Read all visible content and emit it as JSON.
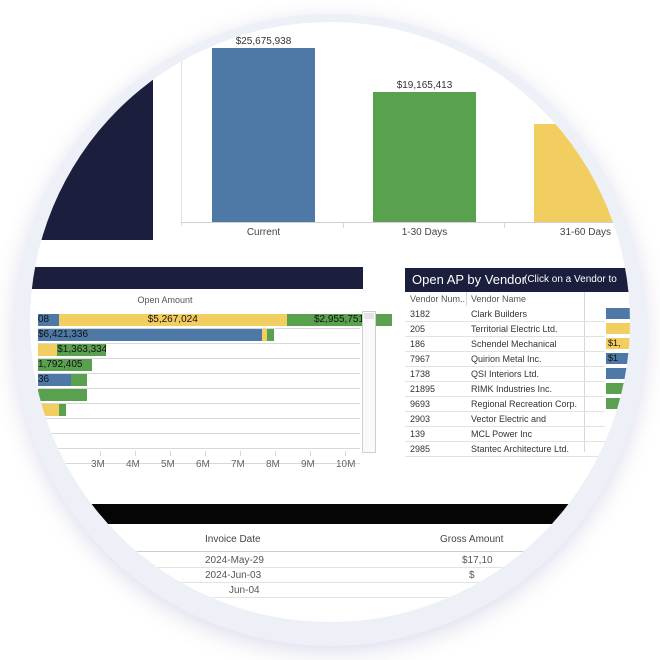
{
  "aging_chart": {
    "bars": [
      {
        "category": "Current",
        "value": 25675938,
        "label": "$25,675,938",
        "color": "#4e79a7"
      },
      {
        "category": "1-30 Days",
        "value": 19165413,
        "label": "$19,165,413",
        "color": "#59a14f"
      },
      {
        "category": "31-60 Days",
        "value": 14500000,
        "label": "",
        "color": "#f2cd60"
      }
    ]
  },
  "open_amount_chart": {
    "axis_title": "Open Amount",
    "ticks": [
      "3M",
      "4M",
      "5M",
      "6M",
      "7M",
      "8M",
      "9M",
      "10M"
    ],
    "rows": [
      {
        "segments": [
          {
            "color": "blue",
            "label": "08",
            "start": 0.0,
            "end": 0.6
          },
          {
            "color": "yellow",
            "label": "$5,267,024",
            "start": 0.6,
            "end": 7.1
          },
          {
            "color": "green",
            "label": "$2,955,751",
            "start": 7.1,
            "end": 10.1
          }
        ]
      },
      {
        "segments": [
          {
            "color": "blue",
            "label": "$6,421,336",
            "start": 0.0,
            "end": 6.4
          },
          {
            "color": "yellow",
            "label": "",
            "start": 6.4,
            "end": 6.55
          },
          {
            "color": "green",
            "label": "",
            "start": 6.55,
            "end": 6.75
          }
        ]
      },
      {
        "segments": [
          {
            "color": "yellow",
            "label": "",
            "start": 0.0,
            "end": 0.55
          },
          {
            "color": "green",
            "label": "$1,363,334",
            "start": 0.55,
            "end": 1.95
          }
        ]
      },
      {
        "segments": [
          {
            "color": "green",
            "label": "1,792,405",
            "start": 0.0,
            "end": 1.55
          }
        ]
      },
      {
        "segments": [
          {
            "color": "blue",
            "label": "36",
            "start": 0.0,
            "end": 0.95
          },
          {
            "color": "green",
            "label": "",
            "start": 0.95,
            "end": 1.4
          }
        ]
      },
      {
        "segments": [
          {
            "color": "green",
            "label": "",
            "start": 0.0,
            "end": 1.4
          }
        ]
      },
      {
        "segments": [
          {
            "color": "yellow",
            "label": "",
            "start": 0.0,
            "end": 0.6
          },
          {
            "color": "green",
            "label": "",
            "start": 0.6,
            "end": 0.8
          }
        ]
      },
      {
        "segments": []
      },
      {
        "segments": []
      },
      {
        "segments": []
      }
    ]
  },
  "vendor_panel": {
    "title": "Open AP by Vendor",
    "subtitle": "(Click on a Vendor to",
    "col_number": "Vendor Num..",
    "col_name": "Vendor Name",
    "rows": [
      {
        "number": "3182",
        "name": "Clark Builders",
        "bar_color": "blue",
        "bar_label": ""
      },
      {
        "number": "205",
        "name": "Territorial Electric Ltd.",
        "bar_color": "yellow",
        "bar_label": ""
      },
      {
        "number": "186",
        "name": "Schendel Mechanical",
        "bar_color": "yellow",
        "bar_label": "$1,"
      },
      {
        "number": "7967",
        "name": "Quirion Metal Inc.",
        "bar_color": "blue",
        "bar_label": "$1"
      },
      {
        "number": "1738",
        "name": "QSI Interiors Ltd.",
        "bar_color": "blue",
        "bar_label": ""
      },
      {
        "number": "21895",
        "name": "RIMK Industries Inc.",
        "bar_color": "green",
        "bar_label": ""
      },
      {
        "number": "9693",
        "name": "Regional Recreation Corp.",
        "bar_color": "green",
        "bar_label": ""
      },
      {
        "number": "2903",
        "name": "Vector Electric and",
        "bar_color": "",
        "bar_label": ""
      },
      {
        "number": "139",
        "name": "MCL Power Inc",
        "bar_color": "",
        "bar_label": ""
      },
      {
        "number": "2985",
        "name": "Stantec Architecture Ltd.",
        "bar_color": "",
        "bar_label": ""
      }
    ]
  },
  "invoice_table": {
    "col_date": "Invoice Date",
    "col_amount": "Gross Amount",
    "rows": [
      {
        "date": "2024-May-29",
        "amount": "$17,10"
      },
      {
        "date": "2024-Jun-03",
        "amount": "$"
      },
      {
        "date": "Jun-04",
        "amount": ""
      }
    ]
  }
}
